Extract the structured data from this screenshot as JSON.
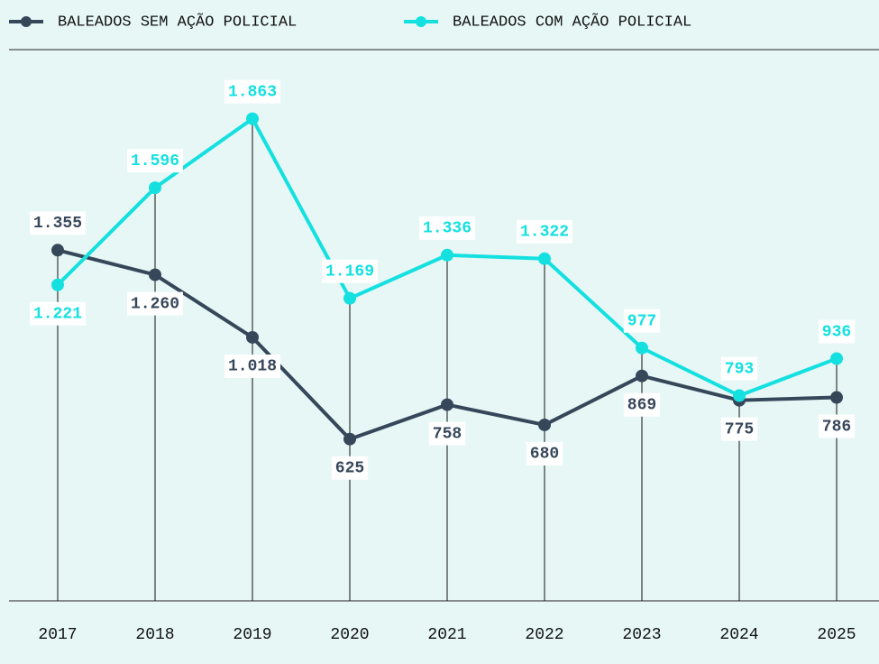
{
  "chart_data": {
    "type": "line",
    "categories": [
      "2017",
      "2018",
      "2019",
      "2020",
      "2021",
      "2022",
      "2023",
      "2024",
      "2025"
    ],
    "series": [
      {
        "name": "BALEADOS SEM AÇÃO POLICIAL",
        "color": "#37475a",
        "values": [
          1355,
          1260,
          1018,
          625,
          758,
          680,
          869,
          775,
          786
        ],
        "value_labels": [
          "1.355",
          "1.260",
          "1.018",
          "625",
          "758",
          "680",
          "869",
          "775",
          "786"
        ]
      },
      {
        "name": "BALEADOS COM AÇÃO POLICIAL",
        "color": "#14e0e0",
        "values": [
          1221,
          1596,
          1863,
          1169,
          1336,
          1322,
          977,
          793,
          936
        ],
        "value_labels": [
          "1.221",
          "1.596",
          "1.863",
          "1.169",
          "1.336",
          "1.322",
          "977",
          "793",
          "936"
        ]
      }
    ],
    "ylim": [
      0,
      2130
    ],
    "legend": "top"
  }
}
